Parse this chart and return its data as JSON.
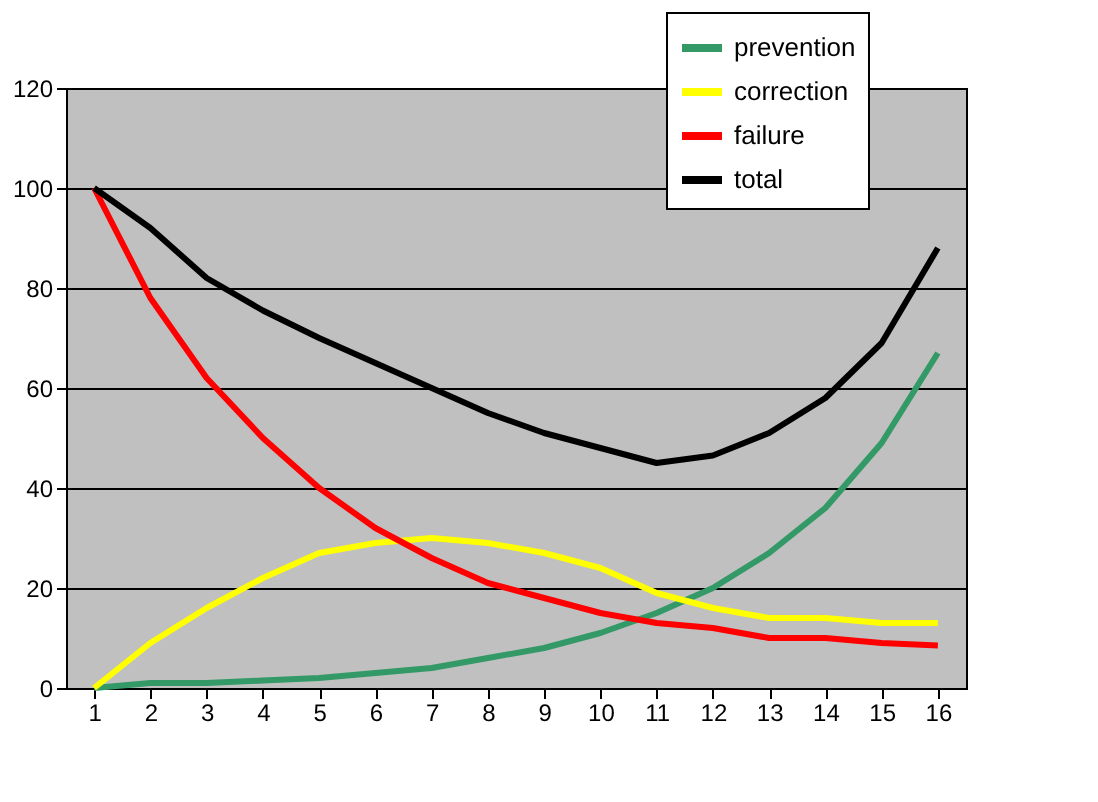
{
  "chart_data": {
    "type": "line",
    "x": [
      1,
      2,
      3,
      4,
      5,
      6,
      7,
      8,
      9,
      10,
      11,
      12,
      13,
      14,
      15,
      16
    ],
    "series": [
      {
        "name": "prevention",
        "color": "#339966",
        "values": [
          0,
          1,
          1,
          1.5,
          2,
          3,
          4,
          6,
          8,
          11,
          15,
          20,
          27,
          36,
          49,
          67
        ]
      },
      {
        "name": "correction",
        "color": "#ffff00",
        "values": [
          0,
          9,
          16,
          22,
          27,
          29,
          30,
          29,
          27,
          24,
          19,
          16,
          14,
          14,
          13,
          13
        ]
      },
      {
        "name": "failure",
        "color": "#ff0000",
        "values": [
          100,
          78,
          62,
          50,
          40,
          32,
          26,
          21,
          18,
          15,
          13,
          12,
          10,
          10,
          9,
          8.5
        ]
      },
      {
        "name": "total",
        "color": "#000000",
        "values": [
          100,
          92,
          82,
          75.5,
          70,
          65,
          60,
          55,
          51,
          48,
          45,
          46.5,
          51,
          58,
          69,
          88
        ]
      }
    ],
    "xlim": [
      0.5,
      16.5
    ],
    "xticks": [
      1,
      2,
      3,
      4,
      5,
      6,
      7,
      8,
      9,
      10,
      11,
      12,
      13,
      14,
      15,
      16
    ],
    "ylim": [
      0,
      120
    ],
    "yticks": [
      0,
      20,
      40,
      60,
      80,
      100,
      120
    ],
    "grid": "y",
    "legend": "top right",
    "marker": "none",
    "line_style": "solid"
  }
}
